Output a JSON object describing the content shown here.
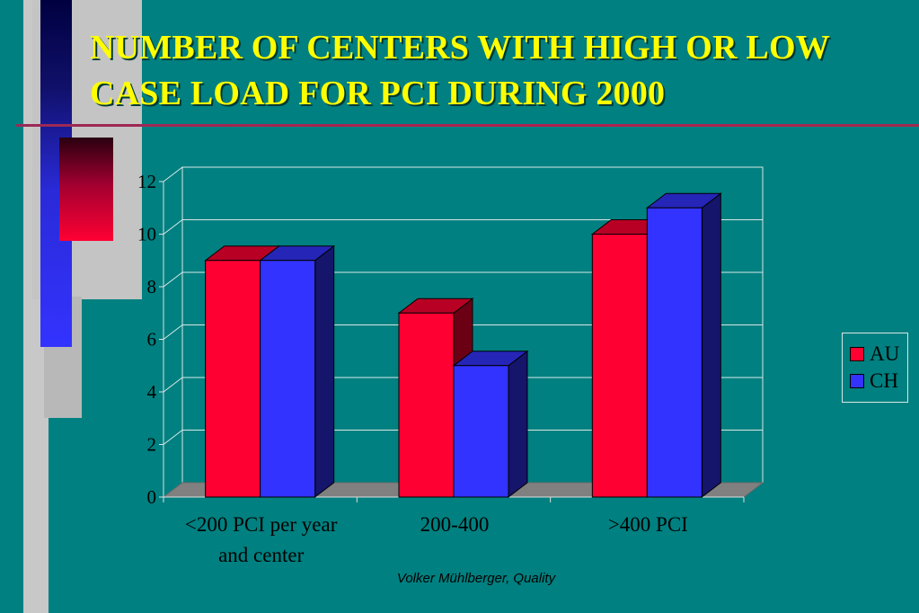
{
  "slide": {
    "title": "NUMBER OF CENTERS WITH HIGH OR LOW CASE  LOAD FOR PCI DURING 2000",
    "footer": "Volker Mühlberger, Quality",
    "background_color": "#008080",
    "title_color": "#FFFF00"
  },
  "chart_data": {
    "type": "bar",
    "style": "3d-clustered",
    "categories": [
      "<200 PCI per year and center",
      "200-400",
      ">400 PCI"
    ],
    "category_lines": [
      [
        "<200 PCI per year",
        "and center"
      ],
      [
        "200-400"
      ],
      [
        ">400 PCI"
      ]
    ],
    "series": [
      {
        "name": "AU",
        "values": [
          9,
          7,
          10
        ],
        "color": "#FF0033"
      },
      {
        "name": "CH",
        "values": [
          9,
          5,
          11
        ],
        "color": "#3333FF"
      }
    ],
    "yticks": [
      "0",
      "2",
      "4",
      "6",
      "8",
      "10",
      "12"
    ],
    "ylim": [
      0,
      12
    ],
    "grid": true,
    "legend_position": "right"
  }
}
